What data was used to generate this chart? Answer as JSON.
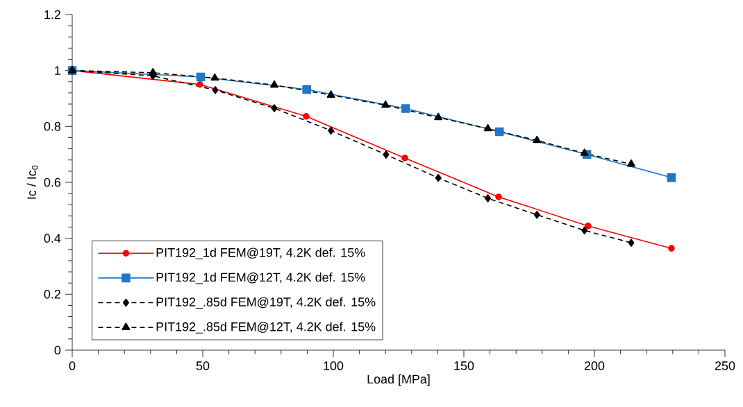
{
  "chart_data": {
    "type": "line",
    "xlabel": "Load [MPa]",
    "ylabel": "Ic / Ic$_{0}$",
    "xlim": [
      0,
      250
    ],
    "ylim": [
      0,
      1.2
    ],
    "xticks": [
      0,
      50,
      100,
      150,
      200,
      250
    ],
    "yticks": [
      0,
      0.2,
      0.4,
      0.6,
      0.8,
      1,
      1.2
    ],
    "grid": false,
    "legend": "bottom left",
    "series": [
      {
        "name": "PIT192_1d FEM@19T, 4.2K def. 15%",
        "color": "#ff0000",
        "marker": "circle",
        "line_style": "solid",
        "x": [
          0,
          48.9,
          89.6,
          127.4,
          163.3,
          197.6,
          229.5
        ],
        "values": [
          1,
          0.95,
          0.836,
          0.687,
          0.548,
          0.444,
          0.364
        ]
      },
      {
        "name": "PIT192_1d FEM@12T, 4.2K def. 15%",
        "color": "#1f78c8",
        "marker": "square",
        "line_style": "solid",
        "x": [
          0,
          49.2,
          89.8,
          127.7,
          163.6,
          197.1,
          229.5
        ],
        "values": [
          1,
          0.977,
          0.932,
          0.864,
          0.781,
          0.7,
          0.617
        ]
      },
      {
        "name": "PIT192_.85d FEM@19T, 4.2K def. 15%",
        "color": "#000000",
        "marker": "diamond",
        "line_style": "dashed",
        "x": [
          0,
          30.9,
          54.8,
          77.4,
          99.1,
          120.2,
          140.2,
          159.2,
          178,
          196.2,
          214.1
        ],
        "values": [
          1,
          0.981,
          0.93,
          0.865,
          0.785,
          0.699,
          0.616,
          0.543,
          0.484,
          0.428,
          0.384
        ]
      },
      {
        "name": "PIT192_.85d FEM@12T, 4.2K def. 15%",
        "color": "#000000",
        "marker": "triangle",
        "line_style": "dashed",
        "x": [
          0,
          30.9,
          54.6,
          77.4,
          99.1,
          120,
          140.2,
          159.2,
          178,
          196.2,
          214.1
        ],
        "values": [
          1,
          0.992,
          0.973,
          0.948,
          0.912,
          0.876,
          0.832,
          0.792,
          0.75,
          0.704,
          0.665
        ]
      }
    ]
  }
}
